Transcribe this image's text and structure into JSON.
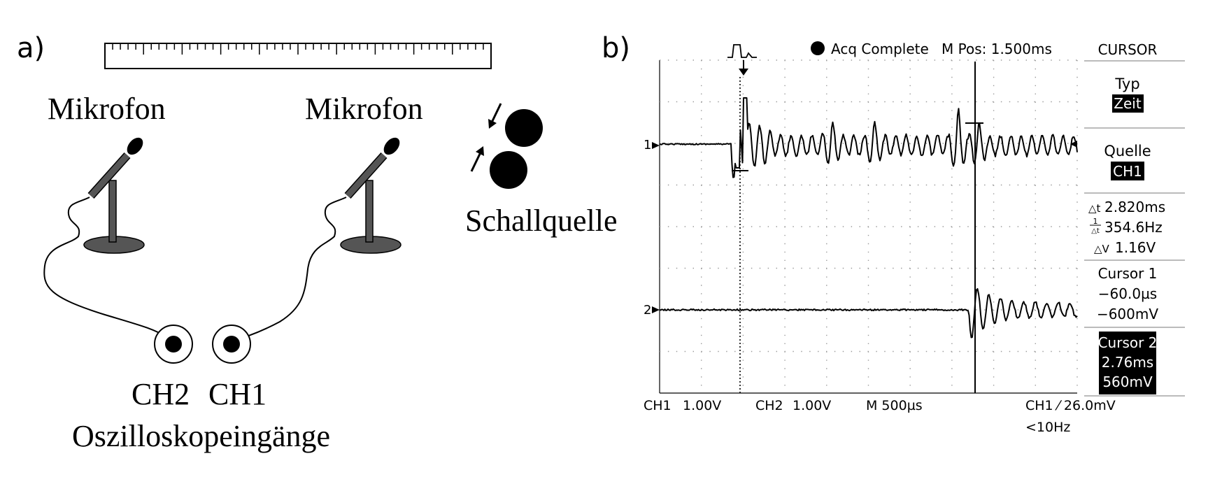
{
  "panel_a": {
    "label": "a)",
    "mic_left_label": "Mikrofon",
    "mic_right_label": "Mikrofon",
    "source_label": "Schallquelle",
    "ch2_label": "CH2",
    "ch1_label": "CH1",
    "inputs_label": "Oszilloskopeingänge"
  },
  "panel_b": {
    "label": "b)",
    "status": {
      "acq_text": "Acq Complete",
      "mpos_text": "M Pos: 1.500ms"
    },
    "menu": {
      "title": "CURSOR",
      "typ_label": "Typ",
      "typ_value": "Zeit",
      "quelle_label": "Quelle",
      "quelle_value": "CH1",
      "delta_t": "2.820ms",
      "inv_delta_t": "354.6Hz",
      "delta_v": "1.16V",
      "cursor1_title": "Cursor 1",
      "cursor1_time": "−60.0µs",
      "cursor1_volt": "−600mV",
      "cursor2_title": "Cursor 2",
      "cursor2_time": "2.76ms",
      "cursor2_volt": "560mV"
    },
    "bottom": {
      "ch1_label": "CH1",
      "ch1_scale": "1.00V",
      "ch2_label": "CH2",
      "ch2_scale": "1.00V",
      "time_base": "M 500µs",
      "trigger_text": "CH1 ⁄ 26.0mV",
      "trigger_filter": "<10Hz"
    },
    "ch1_marker": "1",
    "ch2_marker": "2"
  }
}
